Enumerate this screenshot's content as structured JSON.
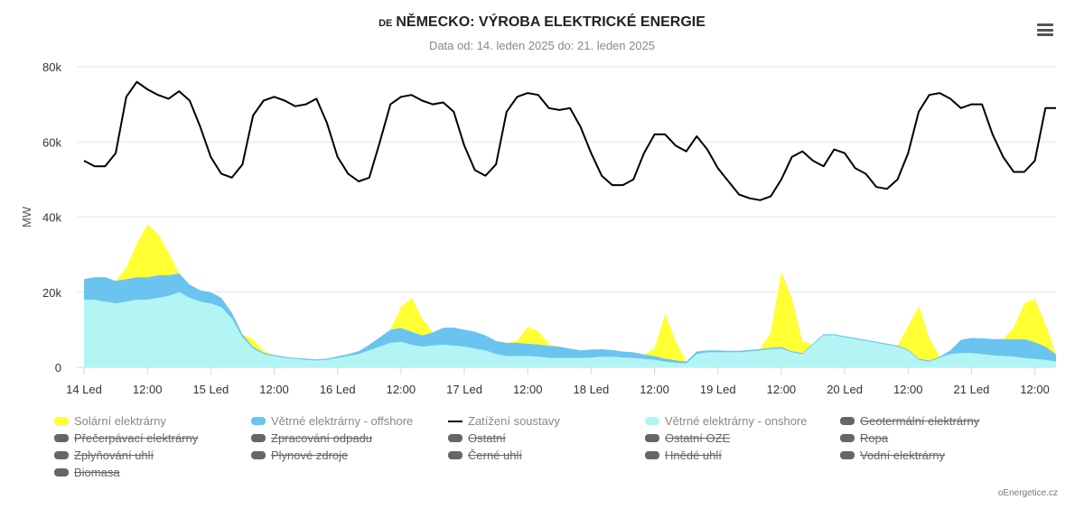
{
  "header": {
    "country_code": "DE",
    "title": "NĚMECKO: VÝROBA ELEKTRICKÉ ENERGIE",
    "subtitle": "Data od: 14. leden 2025 do: 21. leden 2025"
  },
  "menu_icon": "hamburger-menu-icon",
  "credit": "oEnergetice.cz",
  "chart_data": {
    "type": "area",
    "ylabel": "MW",
    "y_ticks": [
      "0",
      "20k",
      "40k",
      "60k",
      "80k"
    ],
    "ylim": [
      0,
      80000
    ],
    "x_unit": "hours since 14 Led 00:00",
    "x_ticks": [
      {
        "x": 0,
        "label": "14 Led"
      },
      {
        "x": 12,
        "label": "12:00"
      },
      {
        "x": 24,
        "label": "15 Led"
      },
      {
        "x": 36,
        "label": "12:00"
      },
      {
        "x": 48,
        "label": "16 Led"
      },
      {
        "x": 60,
        "label": "12:00"
      },
      {
        "x": 72,
        "label": "17 Led"
      },
      {
        "x": 84,
        "label": "12:00"
      },
      {
        "x": 96,
        "label": "18 Led"
      },
      {
        "x": 108,
        "label": "12:00"
      },
      {
        "x": 120,
        "label": "19 Led"
      },
      {
        "x": 132,
        "label": "12:00"
      },
      {
        "x": 144,
        "label": "20 Led"
      },
      {
        "x": 156,
        "label": "12:00"
      },
      {
        "x": 168,
        "label": "21 Led"
      },
      {
        "x": 180,
        "label": "12:00"
      }
    ],
    "xlim": [
      0,
      184
    ],
    "grid": "horizontal",
    "legend_position": "bottom",
    "stack_order": [
      "Větrné elektrárny - onshore",
      "Větrné elektrárny - offshore",
      "Solární elektrárny"
    ],
    "x": [
      0,
      2,
      4,
      6,
      8,
      10,
      12,
      14,
      16,
      18,
      20,
      22,
      24,
      26,
      28,
      30,
      32,
      34,
      36,
      38,
      40,
      42,
      44,
      46,
      48,
      50,
      52,
      54,
      56,
      58,
      60,
      62,
      64,
      66,
      68,
      70,
      72,
      74,
      76,
      78,
      80,
      82,
      84,
      86,
      88,
      90,
      92,
      94,
      96,
      98,
      100,
      102,
      104,
      106,
      108,
      110,
      112,
      114,
      116,
      118,
      120,
      122,
      124,
      126,
      128,
      130,
      132,
      134,
      136,
      138,
      140,
      142,
      144,
      146,
      148,
      150,
      152,
      154,
      156,
      158,
      160,
      162,
      164,
      166,
      168,
      170,
      172,
      174,
      176,
      178,
      180,
      182,
      184
    ],
    "series": [
      {
        "name": "Větrné elektrárny - onshore",
        "color": "#b3f5f5",
        "values": [
          18000,
          18000,
          17500,
          17000,
          17500,
          18000,
          18000,
          18500,
          19000,
          20000,
          18500,
          17500,
          17000,
          16000,
          13000,
          8000,
          5000,
          3500,
          3000,
          2500,
          2200,
          2000,
          1800,
          2000,
          2500,
          3000,
          3500,
          4500,
          5500,
          6500,
          6800,
          6000,
          5500,
          5800,
          6000,
          5800,
          5500,
          5000,
          4500,
          3500,
          3000,
          3000,
          3000,
          2800,
          2500,
          2500,
          2500,
          2500,
          2600,
          2800,
          2800,
          2600,
          2500,
          2200,
          2000,
          1500,
          1200,
          1000,
          3500,
          4000,
          4000,
          4000,
          4000,
          4200,
          4500,
          4800,
          5000,
          4000,
          3500,
          6000,
          8500,
          8500,
          8000,
          7500,
          7000,
          6500,
          6000,
          5500,
          4500,
          2000,
          1500,
          2500,
          3500,
          3800,
          3800,
          3500,
          3200,
          3000,
          2800,
          2500,
          2200,
          2000,
          1500
        ]
      },
      {
        "name": "Větrné elektrárny - offshore",
        "color": "#6ac4ef",
        "values": [
          5500,
          6000,
          6500,
          6000,
          6000,
          6000,
          6000,
          6000,
          5500,
          5000,
          3500,
          3000,
          3000,
          2500,
          1500,
          800,
          500,
          400,
          300,
          300,
          300,
          300,
          300,
          300,
          400,
          500,
          800,
          1500,
          2500,
          3500,
          3700,
          3500,
          3000,
          3500,
          4500,
          4800,
          4500,
          4500,
          4000,
          3500,
          3500,
          3500,
          3300,
          3300,
          3200,
          3000,
          2500,
          2000,
          2100,
          2000,
          1800,
          1600,
          1500,
          1200,
          1000,
          800,
          700,
          500,
          700,
          500,
          500,
          400,
          400,
          400,
          400,
          400,
          400,
          300,
          300,
          300,
          300,
          300,
          300,
          300,
          300,
          300,
          300,
          300,
          300,
          300,
          300,
          300,
          1000,
          3500,
          4000,
          4200,
          4300,
          4500,
          4700,
          5000,
          4500,
          3500,
          2000
        ]
      },
      {
        "name": "Solární elektrárny",
        "color": "#ffff33",
        "values": [
          0,
          0,
          0,
          0,
          3000,
          9000,
          14000,
          11000,
          6000,
          0,
          0,
          0,
          0,
          0,
          0,
          0,
          2000,
          500,
          0,
          0,
          0,
          0,
          0,
          0,
          0,
          0,
          0,
          0,
          0,
          0,
          5500,
          9000,
          4500,
          0,
          0,
          0,
          0,
          0,
          0,
          0,
          0,
          500,
          4500,
          3500,
          500,
          0,
          0,
          0,
          0,
          0,
          0,
          0,
          0,
          0,
          2000,
          12000,
          5000,
          0,
          0,
          0,
          0,
          0,
          0,
          0,
          0,
          4000,
          20000,
          14000,
          3000,
          0,
          0,
          0,
          0,
          0,
          0,
          0,
          0,
          0,
          6000,
          14000,
          6000,
          0,
          0,
          0,
          0,
          0,
          0,
          0,
          3000,
          9500,
          11500,
          6000,
          0
        ]
      },
      {
        "name": "Zatížení soustavy",
        "color": "#000000",
        "values": [
          55000,
          53500,
          53500,
          57000,
          72000,
          76000,
          74000,
          72500,
          71500,
          73500,
          71000,
          64000,
          56000,
          51500,
          50500,
          54000,
          67000,
          71000,
          72000,
          71000,
          69500,
          70000,
          71500,
          65000,
          56000,
          51500,
          49500,
          50500,
          60000,
          70000,
          72000,
          72500,
          71000,
          70000,
          70500,
          68000,
          59000,
          52500,
          51000,
          54000,
          68000,
          72000,
          73000,
          72500,
          69000,
          68500,
          69000,
          64000,
          57000,
          51000,
          48500,
          48500,
          50000,
          57000,
          62000,
          62000,
          59000,
          57500,
          61500,
          58000,
          53000,
          49500,
          46000,
          45000,
          44500,
          45500,
          50000,
          56000,
          57500,
          55000,
          53500,
          58000,
          57000,
          53000,
          51500,
          48000,
          47500,
          50000,
          57000,
          68000,
          72500,
          73000,
          71500,
          69000,
          70000,
          70000,
          62000,
          56000,
          52000,
          52000,
          55000,
          69000,
          69000
        ]
      }
    ]
  },
  "legend": [
    {
      "label": "Solární elektrárny",
      "color": "#ffff33",
      "kind": "area",
      "hidden": false
    },
    {
      "label": "Větrné elektrárny - offshore",
      "color": "#6ac4ef",
      "kind": "area",
      "hidden": false
    },
    {
      "label": "Zatížení soustavy",
      "color": "#000000",
      "kind": "line",
      "hidden": false
    },
    {
      "label": "Větrné elektrárny - onshore",
      "color": "#b3f5f5",
      "kind": "area",
      "hidden": false
    },
    {
      "label": "Geotermální elektrárny",
      "color": "#666666",
      "kind": "area",
      "hidden": true
    },
    {
      "label": "Přečerpávací elektrárny",
      "color": "#666666",
      "kind": "area",
      "hidden": true
    },
    {
      "label": "Zpracování odpadu",
      "color": "#666666",
      "kind": "area",
      "hidden": true
    },
    {
      "label": "Ostatní",
      "color": "#666666",
      "kind": "area",
      "hidden": true
    },
    {
      "label": "Ostatní OZE",
      "color": "#666666",
      "kind": "area",
      "hidden": true
    },
    {
      "label": "Ropa",
      "color": "#666666",
      "kind": "area",
      "hidden": true
    },
    {
      "label": "Zplyňování uhlí",
      "color": "#666666",
      "kind": "area",
      "hidden": true
    },
    {
      "label": "Plynové zdroje",
      "color": "#666666",
      "kind": "area",
      "hidden": true
    },
    {
      "label": "Černé uhlí",
      "color": "#666666",
      "kind": "area",
      "hidden": true
    },
    {
      "label": "Hnědé uhlí",
      "color": "#666666",
      "kind": "area",
      "hidden": true
    },
    {
      "label": "Vodní elektrárny",
      "color": "#666666",
      "kind": "area",
      "hidden": true
    },
    {
      "label": "Biomasa",
      "color": "#666666",
      "kind": "area",
      "hidden": true
    }
  ]
}
